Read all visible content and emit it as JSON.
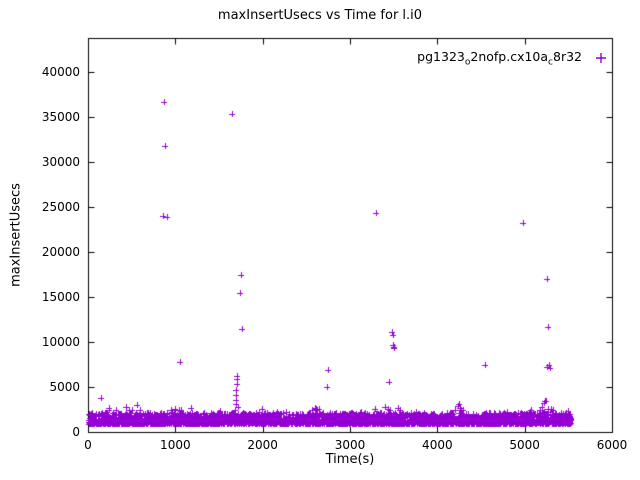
{
  "page": {
    "background": "#ffffff",
    "foreground": "#000000"
  },
  "chart_data": {
    "type": "scatter",
    "title": "maxInsertUsecs vs Time for l.i0",
    "xlabel": "Time(s)",
    "ylabel": "maxInsertUsecs",
    "xlim": [
      0,
      6000
    ],
    "ylim": [
      0,
      43800
    ],
    "x_ticks": [
      0,
      1000,
      2000,
      3000,
      4000,
      5000,
      6000
    ],
    "y_ticks": [
      0,
      5000,
      10000,
      15000,
      20000,
      25000,
      30000,
      35000,
      40000
    ],
    "grid": false,
    "legend_position": "top-right-inside",
    "marker": {
      "shape": "plus",
      "color": "#9400D3",
      "half_size": 3,
      "line_width": 1
    },
    "series": [
      {
        "name": "pg1323_o2nofp.cx10a_c8r32",
        "label_segments": [
          {
            "text": "pg1323",
            "sub": false
          },
          {
            "text": "o",
            "sub": true
          },
          {
            "text": "2nofp.cx10a",
            "sub": false
          },
          {
            "text": "c",
            "sub": true
          },
          {
            "text": "8r32",
            "sub": false
          }
        ],
        "outliers": [
          [
            150,
            3800
          ],
          [
            235,
            2650
          ],
          [
            320,
            2500
          ],
          [
            430,
            2750
          ],
          [
            470,
            2400
          ],
          [
            560,
            2950
          ],
          [
            590,
            2500
          ],
          [
            860,
            24000
          ],
          [
            870,
            36700
          ],
          [
            880,
            31800
          ],
          [
            905,
            23900
          ],
          [
            950,
            2500
          ],
          [
            1000,
            2600
          ],
          [
            1040,
            2400
          ],
          [
            1050,
            7800
          ],
          [
            1060,
            2300
          ],
          [
            1645,
            35400
          ],
          [
            1680,
            2500
          ],
          [
            1690,
            3100
          ],
          [
            1695,
            3600
          ],
          [
            1700,
            4100
          ],
          [
            1700,
            4700
          ],
          [
            1705,
            5300
          ],
          [
            1705,
            5900
          ],
          [
            1710,
            6200
          ],
          [
            1715,
            2800
          ],
          [
            1740,
            15500
          ],
          [
            1755,
            17500
          ],
          [
            1760,
            11500
          ],
          [
            2570,
            2500
          ],
          [
            2600,
            2700
          ],
          [
            2620,
            2450
          ],
          [
            2650,
            2600
          ],
          [
            2740,
            4950
          ],
          [
            2750,
            6900
          ],
          [
            3290,
            2600
          ],
          [
            3300,
            24400
          ],
          [
            3400,
            2800
          ],
          [
            3430,
            2600
          ],
          [
            3450,
            5600
          ],
          [
            3460,
            2500
          ],
          [
            3480,
            11100
          ],
          [
            3490,
            10800
          ],
          [
            3495,
            9700
          ],
          [
            3500,
            9500
          ],
          [
            3505,
            9350
          ],
          [
            3550,
            2700
          ],
          [
            3570,
            2500
          ],
          [
            4200,
            2500
          ],
          [
            4240,
            2900
          ],
          [
            4250,
            3100
          ],
          [
            4260,
            2700
          ],
          [
            4270,
            2500
          ],
          [
            4290,
            2400
          ],
          [
            4550,
            7500
          ],
          [
            4980,
            23200
          ],
          [
            5180,
            2500
          ],
          [
            5200,
            2800
          ],
          [
            5220,
            3200
          ],
          [
            5230,
            3500
          ],
          [
            5240,
            3400
          ],
          [
            5250,
            7200
          ],
          [
            5260,
            17000
          ],
          [
            5270,
            11700
          ],
          [
            5280,
            7400
          ],
          [
            5290,
            7100
          ],
          [
            5300,
            2600
          ],
          [
            5320,
            2400
          ]
        ],
        "baseline_band": {
          "comment": "dense band of samples along the bottom of the plot",
          "count": 3600,
          "x_min": 5,
          "x_max": 5530,
          "y_base": 900,
          "y_spread": 1200,
          "fringe_probability": 0.05,
          "fringe_extra": 700,
          "seed": 42
        }
      }
    ]
  }
}
